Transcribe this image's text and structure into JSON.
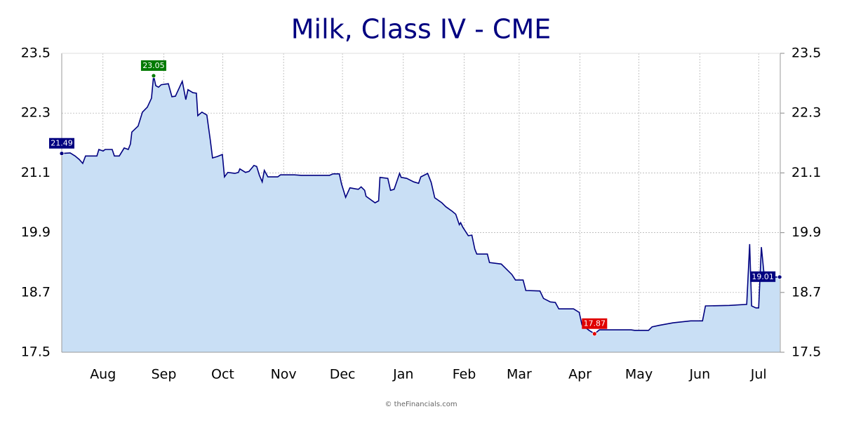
{
  "chart_data": {
    "type": "area-line",
    "title": "Milk, Class IV - CME",
    "credit": "© theFinancials.com",
    "xlim": [
      0,
      366
    ],
    "xticks": [
      {
        "value": 21,
        "label": "Aug"
      },
      {
        "value": 52,
        "label": "Sep"
      },
      {
        "value": 82,
        "label": "Oct"
      },
      {
        "value": 113,
        "label": "Nov"
      },
      {
        "value": 143,
        "label": "Dec"
      },
      {
        "value": 174,
        "label": "Jan"
      },
      {
        "value": 205,
        "label": "Feb"
      },
      {
        "value": 233,
        "label": "Mar"
      },
      {
        "value": 264,
        "label": "Apr"
      },
      {
        "value": 294,
        "label": "May"
      },
      {
        "value": 325,
        "label": "Jun"
      },
      {
        "value": 355,
        "label": "Jul"
      }
    ],
    "ylim": [
      17.5,
      23.5
    ],
    "yticks": [
      17.5,
      18.7,
      19.9,
      21.1,
      22.3,
      23.5
    ],
    "y2lim": [
      17.5,
      23.5
    ],
    "y2ticks": [
      17.5,
      18.7,
      19.9,
      21.1,
      22.3,
      23.5
    ],
    "grid": true,
    "color": "#000080",
    "fill": "#c9dff5",
    "x": [
      0,
      4.3,
      6.8,
      8.9,
      10.7,
      12.1,
      17.9,
      18.9,
      21.1,
      22.1,
      25.7,
      26.8,
      29.3,
      31.8,
      33.9,
      35,
      35.7,
      38.9,
      41.1,
      43.6,
      45.7,
      46.8,
      47.9,
      49.3,
      50.7,
      54.3,
      56.1,
      57.9,
      61.4,
      63.2,
      64.3,
      66.8,
      68.6,
      69.3,
      71.4,
      73.9,
      75.7,
      76.8,
      79.3,
      81.8,
      82.9,
      84.6,
      88.2,
      90,
      90.7,
      93.6,
      95.4,
      97.9,
      99.3,
      100.7,
      102.1,
      103.2,
      105,
      110,
      111.4,
      118.6,
      122.1,
      136.4,
      138.2,
      141.4,
      142.5,
      144.6,
      146.8,
      151.1,
      152.5,
      154.3,
      155,
      159.6,
      161.4,
      162.1,
      166.1,
      167.5,
      169.3,
      172.1,
      172.9,
      175.7,
      179.3,
      181.8,
      182.9,
      186.4,
      188.2,
      190,
      193.6,
      195.7,
      198.9,
      200.7,
      202.5,
      203.2,
      204.3,
      207.1,
      208.9,
      210.4,
      211.4,
      216.8,
      217.9,
      223.9,
      225.7,
      229.3,
      231.1,
      235,
      236.4,
      243.6,
      245.4,
      248.9,
      251.4,
      253.2,
      260.7,
      263.6,
      265,
      268.6,
      271.4,
      273.9,
      290,
      291.8,
      298.9,
      300.7,
      304.3,
      311.4,
      320.4,
      326.4,
      327.9,
      340,
      348.9,
      350.4,
      351.4,
      353.6,
      355,
      356.4,
      357.9,
      365.7
    ],
    "values": [
      21.49,
      21.5,
      21.44,
      21.37,
      21.29,
      21.44,
      21.44,
      21.57,
      21.54,
      21.57,
      21.57,
      21.44,
      21.44,
      21.6,
      21.57,
      21.68,
      21.92,
      22.04,
      22.32,
      22.42,
      22.6,
      23.05,
      22.85,
      22.82,
      22.87,
      22.89,
      22.63,
      22.64,
      22.94,
      22.57,
      22.77,
      22.71,
      22.7,
      22.25,
      22.32,
      22.26,
      21.75,
      21.4,
      21.43,
      21.47,
      21.02,
      21.11,
      21.09,
      21.11,
      21.18,
      21.11,
      21.13,
      21.25,
      21.23,
      21.05,
      20.92,
      21.15,
      21.02,
      21.02,
      21.06,
      21.06,
      21.05,
      21.05,
      21.08,
      21.08,
      20.88,
      20.61,
      20.8,
      20.77,
      20.82,
      20.75,
      20.63,
      20.5,
      20.54,
      21.01,
      20.99,
      20.75,
      20.77,
      21.09,
      21.01,
      20.99,
      20.92,
      20.89,
      21.02,
      21.09,
      20.91,
      20.6,
      20.5,
      20.42,
      20.33,
      20.27,
      20.06,
      20.1,
      20.01,
      19.84,
      19.85,
      19.57,
      19.47,
      19.47,
      19.3,
      19.27,
      19.2,
      19.06,
      18.95,
      18.95,
      18.74,
      18.73,
      18.58,
      18.51,
      18.5,
      18.37,
      18.37,
      18.3,
      18.05,
      17.94,
      17.87,
      17.95,
      17.95,
      17.94,
      17.94,
      18.01,
      18.04,
      18.09,
      18.13,
      18.13,
      18.43,
      18.44,
      18.46,
      19.67,
      18.43,
      18.39,
      18.39,
      19.61,
      19.01,
      19.01
    ],
    "markers": [
      {
        "x": 0,
        "value": 21.49,
        "color": "#000080"
      },
      {
        "x": 46.8,
        "value": 23.05,
        "color": "#007a00"
      },
      {
        "x": 271.4,
        "value": 17.87,
        "color": "#e00000"
      },
      {
        "x": 365.7,
        "value": 19.01,
        "color": "#000080"
      }
    ]
  }
}
